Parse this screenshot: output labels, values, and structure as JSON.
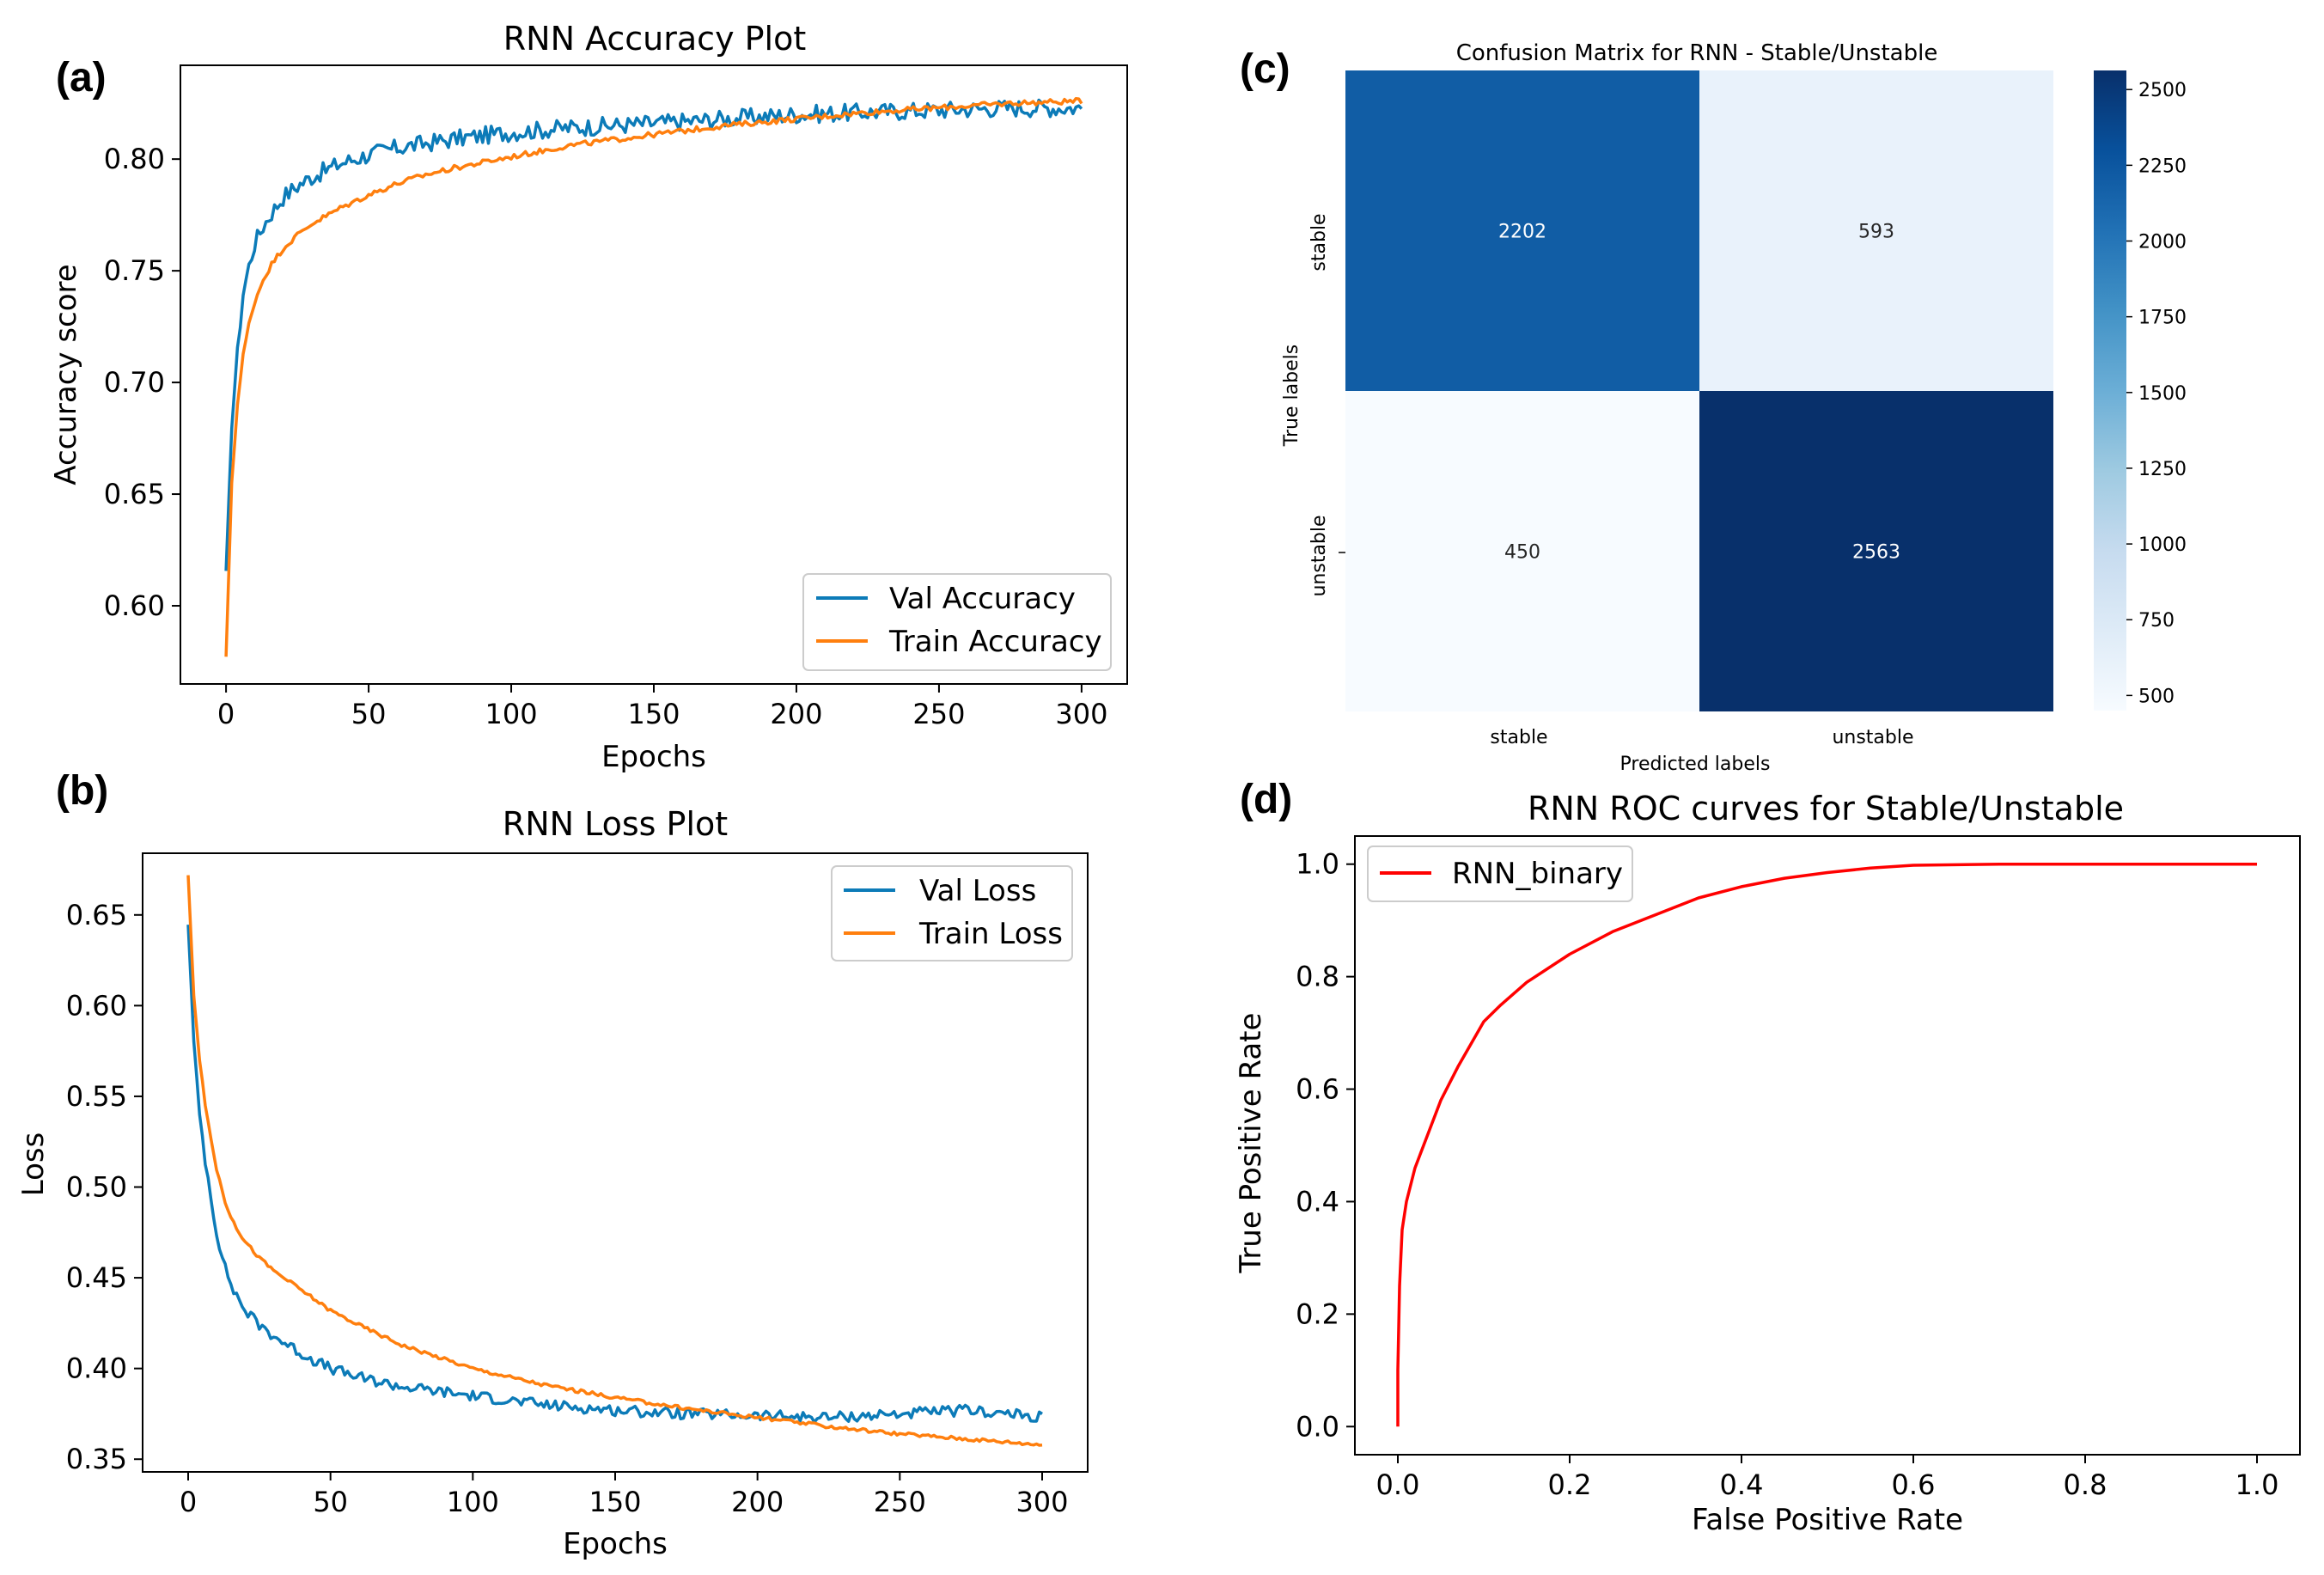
{
  "colors": {
    "val": "#1f77b4",
    "val_line": "#0c7bb8",
    "train": "#ff7f0e",
    "roc": "#ff0000",
    "axis": "#000000",
    "cm_high": "#08306b",
    "cm_low": "#f7fbff"
  },
  "chart_data": [
    {
      "id": "a",
      "panel_label": "(a)",
      "type": "line",
      "title": "RNN Accuracy Plot",
      "xlabel": "Epochs",
      "ylabel": "Accuracy score",
      "xlim": [
        -16,
        316
      ],
      "ylim": [
        0.565,
        0.842
      ],
      "xticks": [
        0,
        50,
        100,
        150,
        200,
        250,
        300
      ],
      "xtick_labels": [
        "0",
        "50",
        "100",
        "150",
        "200",
        "250",
        "300"
      ],
      "yticks": [
        0.6,
        0.65,
        0.7,
        0.75,
        0.8
      ],
      "ytick_labels": [
        "0.60",
        "0.65",
        "0.70",
        "0.75",
        "0.80"
      ],
      "legend_position": "lower-right",
      "series": [
        {
          "name": "Val Accuracy",
          "color": "#0c7bb8",
          "x": [
            0,
            2,
            4,
            6,
            8,
            10,
            13,
            16,
            20,
            25,
            30,
            40,
            50,
            60,
            70,
            80,
            100,
            120,
            150,
            175,
            200,
            225,
            250,
            275,
            300
          ],
          "y": [
            0.615,
            0.68,
            0.715,
            0.74,
            0.752,
            0.762,
            0.77,
            0.776,
            0.783,
            0.788,
            0.792,
            0.798,
            0.802,
            0.805,
            0.807,
            0.809,
            0.812,
            0.814,
            0.816,
            0.818,
            0.82,
            0.821,
            0.822,
            0.823,
            0.823
          ],
          "noise": 0.004
        },
        {
          "name": "Train Accuracy",
          "color": "#ff7f0e",
          "x": [
            0,
            2,
            4,
            6,
            8,
            10,
            13,
            16,
            20,
            25,
            30,
            40,
            50,
            60,
            70,
            80,
            100,
            120,
            150,
            175,
            200,
            225,
            250,
            275,
            300
          ],
          "y": [
            0.577,
            0.655,
            0.69,
            0.712,
            0.726,
            0.736,
            0.746,
            0.753,
            0.76,
            0.766,
            0.771,
            0.778,
            0.784,
            0.789,
            0.793,
            0.796,
            0.801,
            0.806,
            0.811,
            0.815,
            0.818,
            0.821,
            0.823,
            0.825,
            0.826
          ],
          "noise": 0.0012
        }
      ]
    },
    {
      "id": "b",
      "panel_label": "(b)",
      "type": "line",
      "title": "RNN Loss Plot",
      "xlabel": "Epochs",
      "ylabel": "Loss",
      "xlim": [
        -16,
        316
      ],
      "ylim": [
        0.343,
        0.684
      ],
      "xticks": [
        0,
        50,
        100,
        150,
        200,
        250,
        300
      ],
      "xtick_labels": [
        "0",
        "50",
        "100",
        "150",
        "200",
        "250",
        "300"
      ],
      "yticks": [
        0.35,
        0.4,
        0.45,
        0.5,
        0.55,
        0.6,
        0.65
      ],
      "ytick_labels": [
        "0.35",
        "0.40",
        "0.45",
        "0.50",
        "0.55",
        "0.60",
        "0.65"
      ],
      "legend_position": "upper-right",
      "series": [
        {
          "name": "Val Loss",
          "color": "#0c7bb8",
          "x": [
            0,
            2,
            4,
            6,
            8,
            10,
            13,
            16,
            20,
            25,
            30,
            40,
            50,
            60,
            75,
            100,
            125,
            150,
            175,
            200,
            225,
            250,
            275,
            300
          ],
          "y": [
            0.645,
            0.58,
            0.54,
            0.515,
            0.495,
            0.475,
            0.455,
            0.443,
            0.432,
            0.424,
            0.418,
            0.408,
            0.4,
            0.395,
            0.39,
            0.385,
            0.38,
            0.377,
            0.375,
            0.374,
            0.373,
            0.375,
            0.377,
            0.373
          ],
          "noise": 0.003
        },
        {
          "name": "Train Loss",
          "color": "#ff7f0e",
          "x": [
            0,
            2,
            4,
            6,
            8,
            10,
            13,
            16,
            20,
            25,
            30,
            40,
            50,
            60,
            75,
            100,
            125,
            150,
            175,
            200,
            225,
            250,
            275,
            300
          ],
          "y": [
            0.672,
            0.605,
            0.57,
            0.545,
            0.527,
            0.51,
            0.492,
            0.48,
            0.47,
            0.461,
            0.454,
            0.443,
            0.432,
            0.424,
            0.413,
            0.4,
            0.391,
            0.384,
            0.378,
            0.373,
            0.368,
            0.364,
            0.361,
            0.358
          ],
          "noise": 0.001
        }
      ]
    },
    {
      "id": "c",
      "panel_label": "(c)",
      "type": "heatmap",
      "title": "Confusion Matrix for RNN - Stable/Unstable",
      "xlabel": "Predicted labels",
      "ylabel": "True labels",
      "x_categories": [
        "stable",
        "unstable"
      ],
      "y_categories": [
        "stable",
        "unstable"
      ],
      "values": [
        [
          2202,
          593
        ],
        [
          450,
          2563
        ]
      ],
      "colorbar_range": [
        450,
        2563
      ],
      "colorbar_ticks": [
        500,
        750,
        1000,
        1250,
        1500,
        1750,
        2000,
        2250,
        2500
      ],
      "colorbar_tick_labels": [
        "500",
        "750",
        "1000",
        "1250",
        "1500",
        "1750",
        "2000",
        "2250",
        "2500"
      ],
      "colormap": "Blues"
    },
    {
      "id": "d",
      "panel_label": "(d)",
      "type": "line",
      "title": "RNN ROC curves for Stable/Unstable",
      "xlabel": "False Positive Rate",
      "ylabel": "True Positive Rate",
      "xlim": [
        -0.05,
        1.05
      ],
      "ylim": [
        -0.05,
        1.05
      ],
      "xticks": [
        0.0,
        0.2,
        0.4,
        0.6,
        0.8,
        1.0
      ],
      "xtick_labels": [
        "0.0",
        "0.2",
        "0.4",
        "0.6",
        "0.8",
        "1.0"
      ],
      "yticks": [
        0.0,
        0.2,
        0.4,
        0.6,
        0.8,
        1.0
      ],
      "ytick_labels": [
        "0.0",
        "0.2",
        "0.4",
        "0.6",
        "0.8",
        "1.0"
      ],
      "legend_position": "upper-left",
      "series": [
        {
          "name": "RNN_binary",
          "color": "#ff0000",
          "x": [
            0.0,
            0.0,
            0.002,
            0.005,
            0.01,
            0.02,
            0.03,
            0.05,
            0.07,
            0.1,
            0.12,
            0.15,
            0.2,
            0.25,
            0.3,
            0.35,
            0.4,
            0.45,
            0.5,
            0.55,
            0.6,
            0.7,
            0.8,
            0.9,
            1.0
          ],
          "y": [
            0.0,
            0.1,
            0.25,
            0.35,
            0.4,
            0.46,
            0.5,
            0.58,
            0.64,
            0.72,
            0.75,
            0.79,
            0.84,
            0.88,
            0.91,
            0.94,
            0.96,
            0.975,
            0.985,
            0.993,
            0.998,
            1.0,
            1.0,
            1.0,
            1.0
          ],
          "noise": 0
        }
      ]
    }
  ]
}
